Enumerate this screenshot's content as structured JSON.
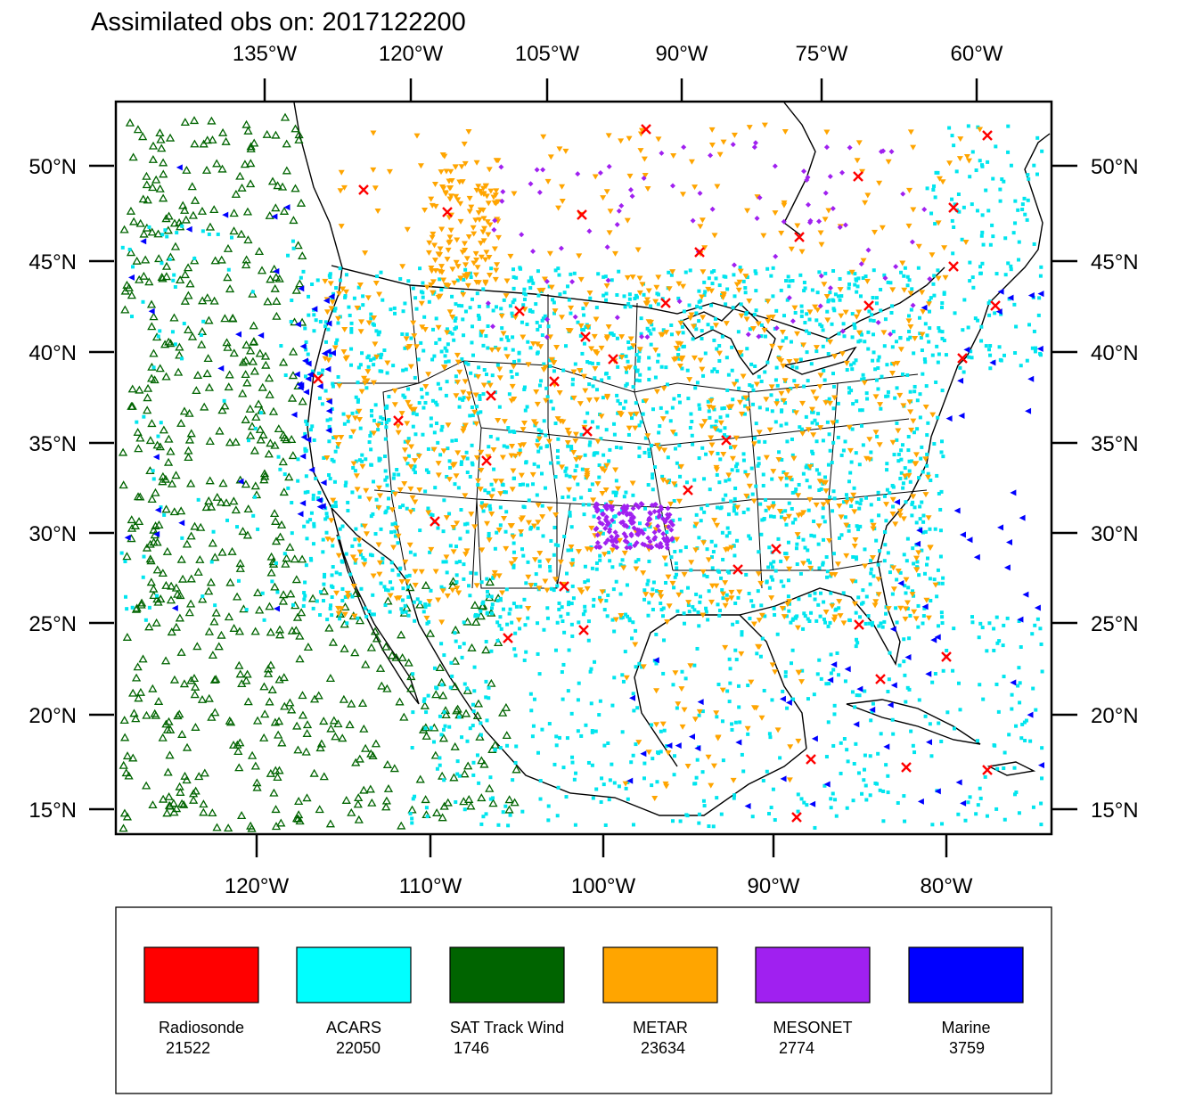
{
  "title": "Assimilated obs on: 2017122200",
  "top_lon_labels": [
    "135°W",
    "120°W",
    "105°W",
    "90°W",
    "75°W",
    "60°W"
  ],
  "bottom_lon_labels": [
    "120°W",
    "110°W",
    "100°W",
    "90°W",
    "80°W"
  ],
  "lat_labels": [
    "50°N",
    "45°N",
    "40°N",
    "35°N",
    "30°N",
    "25°N",
    "20°N",
    "15°N"
  ],
  "legend": [
    {
      "key": "radiosonde",
      "label": "Radiosonde",
      "count": "21522",
      "color": "#ff0000"
    },
    {
      "key": "acars",
      "label": "ACARS",
      "count": "22050",
      "color": "#00ffff"
    },
    {
      "key": "sat-track-wind",
      "label": "SAT Track Wind",
      "count": "1746",
      "color": "#006400"
    },
    {
      "key": "metar",
      "label": "METAR",
      "count": "23634",
      "color": "#ffa500"
    },
    {
      "key": "mesonet",
      "label": "MESONET",
      "count": "2774",
      "color": "#a020f0"
    },
    {
      "key": "marine",
      "label": "Marine",
      "count": "3759",
      "color": "#0000ff"
    }
  ],
  "colors": {
    "frame": "#000000",
    "coastline": "#000000",
    "radiosonde": "#ff0000",
    "acars": "#00e5ee",
    "sat_track_wind": "#006400",
    "metar": "#ffa500",
    "mesonet": "#a020f0",
    "marine": "#0000ff"
  }
}
